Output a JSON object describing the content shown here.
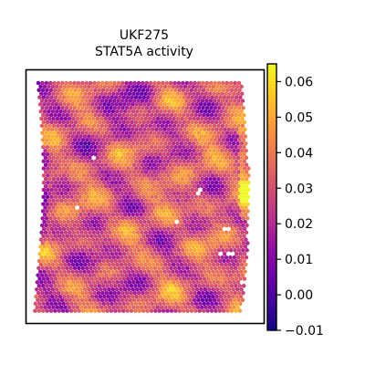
{
  "chart_data": {
    "type": "heatmap",
    "subtype": "spatial-spot-map",
    "title": [
      "UKF275",
      "STAT5A activity"
    ],
    "xlabel": "",
    "ylabel": "",
    "grid": false,
    "colorbar": {
      "colormap": "plasma",
      "range": [
        -0.01,
        0.065
      ],
      "ticks": [
        -0.01,
        0.0,
        0.01,
        0.02,
        0.03,
        0.04,
        0.05,
        0.06
      ],
      "tick_labels": [
        "−0.01",
        "0.00",
        "0.01",
        "0.02",
        "0.03",
        "0.04",
        "0.05",
        "0.06"
      ],
      "position": "right"
    },
    "value_summary": {
      "typical_range": [
        0.0,
        0.05
      ],
      "high_spots_edge": "right",
      "high_value": 0.065
    },
    "missing_spots_color": "#ffffff"
  },
  "colors": {
    "frame": "#000000",
    "background": "#ffffff"
  }
}
